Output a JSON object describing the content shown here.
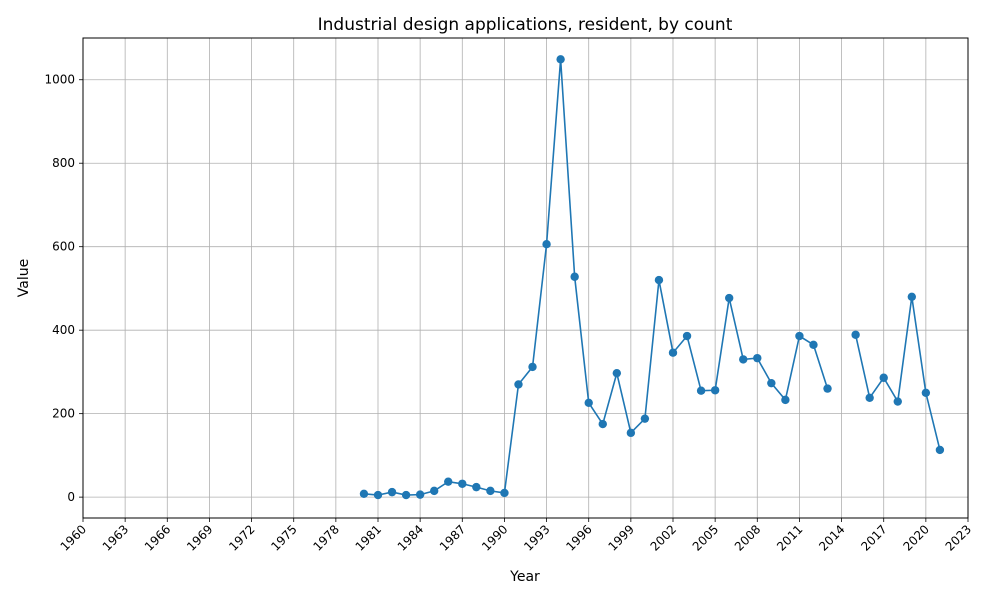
{
  "chart_data": {
    "type": "line",
    "title": "Industrial design applications, resident, by count",
    "xlabel": "Year",
    "ylabel": "Value",
    "xlim": [
      1960,
      2023
    ],
    "ylim": [
      -50,
      1100
    ],
    "grid": true,
    "legend": "none",
    "colors": {
      "series": "#1f77b4"
    },
    "x_ticks": [
      1960,
      1963,
      1966,
      1969,
      1972,
      1975,
      1978,
      1981,
      1984,
      1987,
      1990,
      1993,
      1996,
      1999,
      2002,
      2005,
      2008,
      2011,
      2014,
      2017,
      2020,
      2023
    ],
    "y_ticks": [
      0,
      200,
      400,
      600,
      800,
      1000
    ],
    "series": [
      {
        "x": [
          1980,
          1981,
          1982,
          1983,
          1984,
          1985,
          1986,
          1987,
          1988,
          1989,
          1990,
          1991,
          1992,
          1993,
          1994,
          1995,
          1996,
          1997,
          1998,
          1999,
          2000,
          2001,
          2002,
          2003,
          2004,
          2005,
          2006,
          2007,
          2008,
          2009,
          2010,
          2011,
          2012,
          2013,
          2014,
          2015,
          2016,
          2017,
          2018,
          2019,
          2020,
          2021
        ],
        "values": [
          8,
          5,
          12,
          5,
          6,
          15,
          37,
          32,
          24,
          15,
          10,
          270,
          312,
          606,
          1049,
          528,
          226,
          175,
          297,
          154,
          188,
          520,
          346,
          386,
          255,
          256,
          477,
          330,
          333,
          273,
          233,
          386,
          365,
          260,
          null,
          389,
          238,
          286,
          229,
          480,
          250,
          113
        ]
      }
    ]
  }
}
